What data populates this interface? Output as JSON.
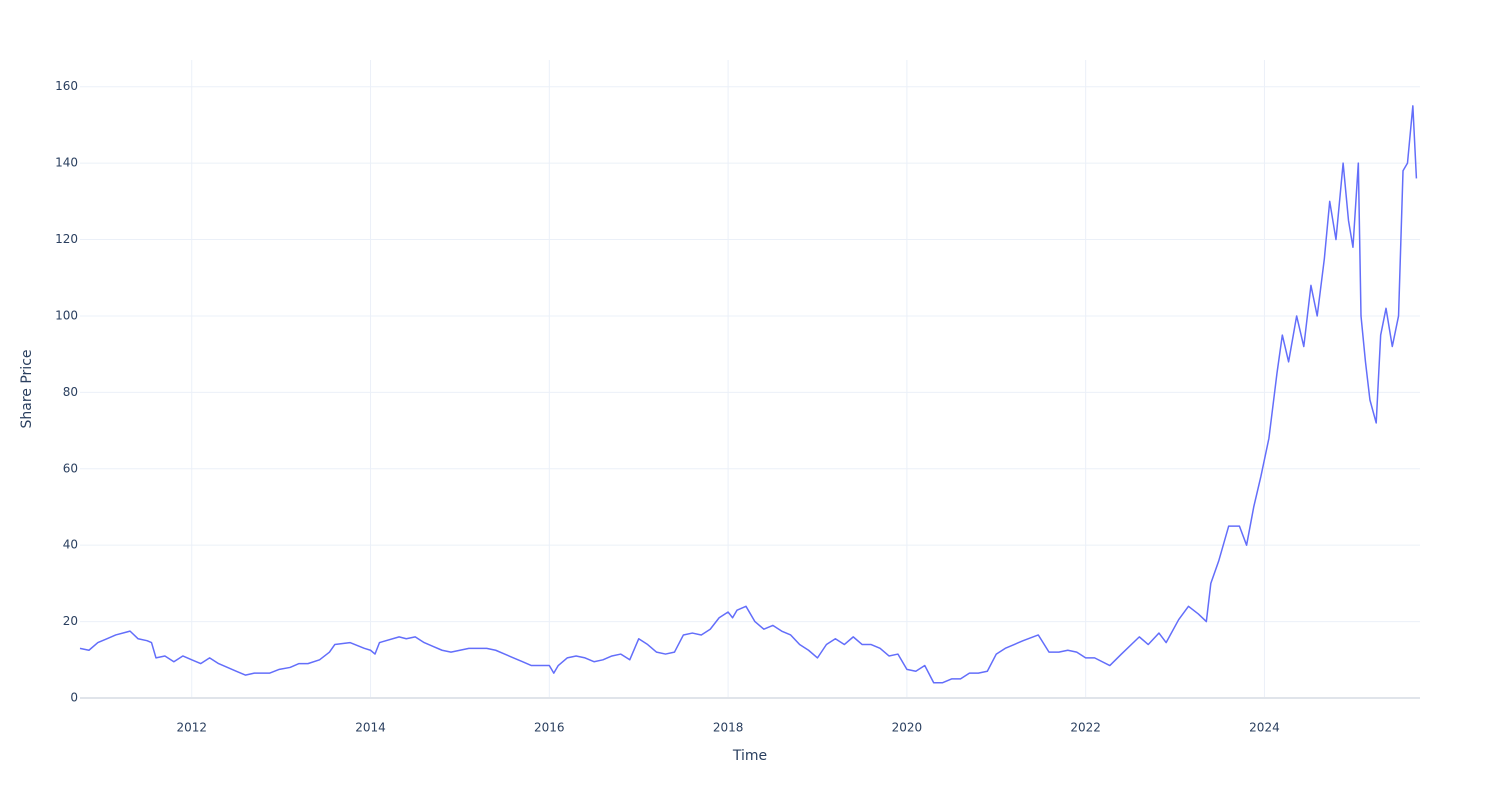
{
  "chart_data": {
    "type": "line",
    "x_label": "Time",
    "y_label": "Share Price",
    "x": [
      2010.75,
      2010.85,
      2010.95,
      2011.05,
      2011.15,
      2011.31,
      2011.4,
      2011.5,
      2011.55,
      2011.6,
      2011.7,
      2011.8,
      2011.9,
      2012.0,
      2012.1,
      2012.2,
      2012.3,
      2012.4,
      2012.5,
      2012.6,
      2012.7,
      2012.87,
      2012.98,
      2013.1,
      2013.2,
      2013.3,
      2013.43,
      2013.54,
      2013.6,
      2013.77,
      2013.93,
      2014.0,
      2014.05,
      2014.1,
      2014.32,
      2014.4,
      2014.5,
      2014.6,
      2014.7,
      2014.8,
      2014.9,
      2015.0,
      2015.1,
      2015.2,
      2015.3,
      2015.4,
      2015.5,
      2015.6,
      2015.7,
      2015.8,
      2015.9,
      2016.0,
      2016.05,
      2016.1,
      2016.2,
      2016.3,
      2016.4,
      2016.5,
      2016.6,
      2016.7,
      2016.8,
      2016.9,
      2017.0,
      2017.1,
      2017.2,
      2017.3,
      2017.4,
      2017.5,
      2017.6,
      2017.7,
      2017.8,
      2017.9,
      2018.0,
      2018.05,
      2018.1,
      2018.2,
      2018.3,
      2018.4,
      2018.5,
      2018.6,
      2018.7,
      2018.8,
      2018.9,
      2019.0,
      2019.1,
      2019.2,
      2019.3,
      2019.4,
      2019.5,
      2019.6,
      2019.7,
      2019.8,
      2019.9,
      2020.0,
      2020.1,
      2020.2,
      2020.3,
      2020.4,
      2020.5,
      2020.6,
      2020.7,
      2020.8,
      2020.9,
      2021.0,
      2021.1,
      2021.2,
      2021.3,
      2021.47,
      2021.59,
      2021.7,
      2021.8,
      2021.9,
      2022.0,
      2022.1,
      2022.27,
      2022.4,
      2022.6,
      2022.7,
      2022.82,
      2022.9,
      2023.04,
      2023.15,
      2023.26,
      2023.35,
      2023.4,
      2023.49,
      2023.6,
      2023.72,
      2023.8,
      2023.88,
      2023.96,
      2024.05,
      2024.14,
      2024.2,
      2024.27,
      2024.36,
      2024.44,
      2024.52,
      2024.59,
      2024.67,
      2024.73,
      2024.8,
      2024.88,
      2024.94,
      2024.99,
      2025.05,
      2025.08,
      2025.13,
      2025.18,
      2025.25,
      2025.3,
      2025.36,
      2025.43,
      2025.5,
      2025.55,
      2025.6,
      2025.66,
      2025.7
    ],
    "series": [
      {
        "name": "Share Price",
        "color": "#636efa",
        "values": [
          13,
          12.5,
          14.5,
          15.5,
          16.5,
          17.5,
          15.5,
          15,
          14.5,
          10.5,
          11,
          9.5,
          11,
          10,
          9,
          10.5,
          9,
          8,
          7,
          6,
          6.5,
          6.5,
          7.5,
          8,
          9,
          9,
          10,
          12,
          14,
          14.5,
          13,
          12.5,
          11.5,
          14.5,
          16,
          15.5,
          16,
          14.5,
          13.5,
          12.5,
          12,
          12.5,
          13,
          13,
          13,
          12.5,
          11.5,
          10.5,
          9.5,
          8.5,
          8.5,
          8.5,
          6.5,
          8.5,
          10.5,
          11,
          10.5,
          9.5,
          10,
          11,
          11.5,
          10,
          15.5,
          14,
          12,
          11.5,
          12,
          16.5,
          17,
          16.5,
          18,
          21,
          22.5,
          21,
          23,
          24,
          20,
          18,
          19,
          17.5,
          16.5,
          14,
          12.5,
          10.5,
          14,
          15.5,
          14,
          16,
          14,
          14,
          13,
          11,
          11.5,
          7.5,
          7,
          8.5,
          4,
          4,
          5,
          5,
          6.5,
          6.5,
          7,
          11.5,
          13,
          14,
          15,
          16.5,
          12,
          12,
          12.5,
          12,
          10.5,
          10.5,
          8.5,
          11.5,
          16,
          14,
          17,
          14.5,
          20.5,
          24,
          22,
          20,
          30,
          36,
          45,
          45,
          40,
          50,
          58,
          68,
          85,
          95,
          88,
          100,
          92,
          108,
          100,
          115,
          130,
          120,
          140,
          125,
          118,
          140,
          100,
          88,
          78,
          72,
          95,
          102,
          92,
          100,
          138,
          140,
          155,
          136
        ]
      }
    ],
    "xlim": [
      2010.75,
      2025.74
    ],
    "xticks": [
      2012,
      2014,
      2016,
      2018,
      2020,
      2022,
      2024
    ],
    "ylim": [
      0,
      167
    ],
    "yticks": [
      0,
      20,
      40,
      60,
      80,
      100,
      120,
      140,
      160
    ],
    "grid": true
  }
}
